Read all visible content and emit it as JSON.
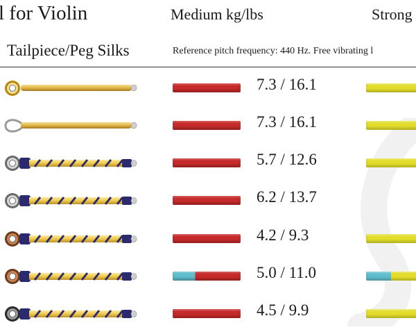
{
  "header": {
    "title": "l for Violin",
    "medium_label": "Medium kg/lbs",
    "strong_label": "Strong",
    "subtitle": "Tailpiece/Peg Silks",
    "reference_note": "Reference pitch frequency: 440 Hz. Free vibrating l"
  },
  "colors": {
    "medium_red": "#c62a2a",
    "light_blue": "#5fbccc",
    "strong_yellow": "#e2dd2a",
    "gold": "#e0b64a",
    "navy": "#2c2a6e"
  },
  "rows": [
    {
      "value": "7.3 / 16.1",
      "icon": "gold-ring-string-icon",
      "medium_split": 0,
      "strong": "yellow",
      "strong_split": 0
    },
    {
      "value": "7.3 / 16.1",
      "icon": "loop-end-string-icon",
      "medium_split": 0,
      "strong": "yellow",
      "strong_split": 0
    },
    {
      "value": "5.7 / 12.6",
      "icon": "silver-ring-silk-string-icon",
      "medium_split": 0,
      "strong": "yellow",
      "strong_split": 0
    },
    {
      "value": "6.2 / 13.7",
      "icon": "silver-ring-silk-string-icon",
      "medium_split": 0,
      "strong": "none",
      "strong_split": 0
    },
    {
      "value": "4.2 / 9.3",
      "icon": "copper-ring-silk-string-icon",
      "medium_split": 0,
      "strong": "yellow",
      "strong_split": 0
    },
    {
      "value": "5.0 / 11.0",
      "icon": "copper-ring-silk-string-icon",
      "medium_split": 0.33,
      "strong": "yellow",
      "strong_split": 0.45
    },
    {
      "value": "4.5 / 9.9",
      "icon": "dark-ring-silk-string-icon",
      "medium_split": 0,
      "strong": "yellow",
      "strong_split": 0
    }
  ]
}
